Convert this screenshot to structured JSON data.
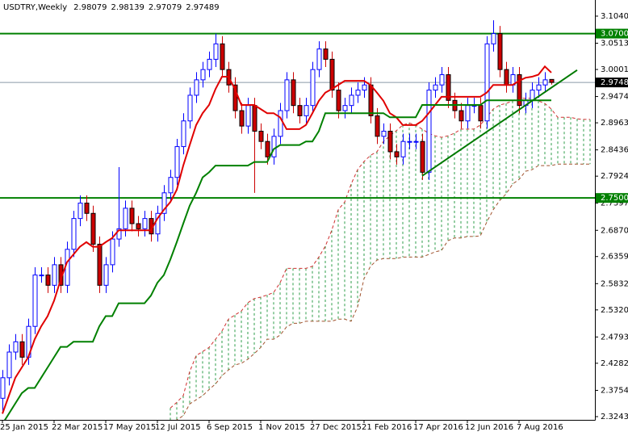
{
  "chart_data": {
    "type": "candlestick",
    "title": "USDTRY,Weekly",
    "ylim": [
      2.318,
      3.1354
    ],
    "yticks": [
      {
        "value": 3.104,
        "label": "3.10400"
      },
      {
        "value": 3.0513,
        "label": "3.05130"
      },
      3.00015,
      2.94745,
      {
        "value": 2.8963,
        "label": "2.89630"
      },
      {
        "value": 2.8436,
        "label": "2.84360"
      },
      2.79245,
      2.73975,
      {
        "value": 2.687,
        "label": "2.68700"
      },
      2.63595,
      {
        "value": 2.5832,
        "label": "2.58320"
      },
      2.53205,
      2.47935,
      {
        "value": 2.4282,
        "label": "2.42820"
      },
      2.37545,
      {
        "value": 2.3243,
        "label": "2.32430"
      }
    ],
    "categories": [
      "25 Jan 2015",
      null,
      null,
      null,
      null,
      null,
      null,
      null,
      "22 Mar 2015",
      null,
      null,
      null,
      null,
      null,
      null,
      null,
      "17 May 2015",
      null,
      null,
      null,
      null,
      null,
      null,
      null,
      "12 Jul 2015",
      null,
      null,
      null,
      null,
      null,
      null,
      null,
      "6 Sep 2015",
      null,
      null,
      null,
      null,
      null,
      null,
      null,
      "1 Nov 2015",
      null,
      null,
      null,
      null,
      null,
      null,
      null,
      "27 Dec 2015",
      null,
      null,
      null,
      null,
      null,
      null,
      null,
      "21 Feb 2016",
      null,
      null,
      null,
      null,
      null,
      null,
      null,
      "17 Apr 2016",
      null,
      null,
      null,
      null,
      null,
      null,
      null,
      "12 Jun 2016",
      null,
      null,
      null,
      null,
      null,
      null,
      null,
      "7 Aug 2016",
      null,
      null,
      null,
      null,
      null
    ],
    "candles": {
      "bull_color": "#0000ff",
      "bear_color": "#cc0000",
      "open": [
        2.36,
        2.4,
        2.45,
        2.47,
        2.44,
        2.5,
        2.6,
        2.6,
        2.58,
        2.62,
        2.58,
        2.65,
        2.71,
        2.74,
        2.72,
        2.66,
        2.58,
        2.62,
        2.67,
        2.69,
        2.73,
        2.7,
        2.69,
        2.71,
        2.68,
        2.72,
        2.76,
        2.79,
        2.85,
        2.9,
        2.95,
        2.98,
        3.0,
        3.02,
        3.05,
        3.0,
        2.97,
        2.92,
        2.89,
        2.93,
        2.88,
        2.86,
        2.83,
        2.87,
        2.92,
        2.98,
        2.93,
        2.91,
        2.93,
        3.0,
        3.04,
        3.02,
        2.96,
        2.92,
        2.93,
        2.95,
        2.96,
        2.97,
        2.91,
        2.87,
        2.88,
        2.84,
        2.83,
        2.86,
        2.86,
        2.86,
        2.8,
        2.96,
        2.97,
        2.99,
        2.94,
        2.92,
        2.9,
        2.93,
        2.93,
        2.9,
        3.05,
        3.07,
        3.0,
        2.97,
        2.99,
        2.93,
        2.94,
        2.96,
        2.97,
        2.98079
      ],
      "high": [
        2.415,
        2.465,
        2.485,
        2.485,
        2.515,
        2.615,
        2.615,
        2.615,
        2.635,
        2.635,
        2.665,
        2.725,
        2.755,
        2.755,
        2.735,
        2.675,
        2.635,
        2.685,
        2.81,
        2.745,
        2.745,
        2.715,
        2.725,
        2.725,
        2.735,
        2.775,
        2.805,
        2.865,
        2.915,
        2.965,
        2.995,
        3.015,
        3.035,
        3.07,
        3.065,
        3.015,
        2.985,
        2.935,
        2.945,
        2.945,
        2.895,
        2.875,
        2.885,
        2.935,
        2.995,
        2.995,
        2.945,
        2.945,
        3.015,
        3.055,
        3.055,
        3.035,
        2.975,
        2.945,
        2.965,
        2.975,
        2.985,
        2.985,
        2.925,
        2.895,
        2.895,
        2.855,
        2.875,
        2.875,
        2.875,
        2.875,
        2.975,
        2.985,
        3.005,
        3.005,
        2.955,
        2.935,
        2.945,
        2.945,
        2.945,
        3.065,
        3.096,
        3.085,
        3.015,
        3.005,
        3.005,
        2.955,
        2.975,
        2.985,
        2.995,
        2.98139
      ],
      "low": [
        2.33,
        2.385,
        2.435,
        2.425,
        2.425,
        2.485,
        2.585,
        2.565,
        2.565,
        2.565,
        2.565,
        2.635,
        2.695,
        2.705,
        2.645,
        2.565,
        2.565,
        2.605,
        2.655,
        2.675,
        2.685,
        2.675,
        2.675,
        2.665,
        2.665,
        2.705,
        2.745,
        2.775,
        2.835,
        2.885,
        2.935,
        2.965,
        2.985,
        3.005,
        2.985,
        2.955,
        2.905,
        2.875,
        2.875,
        2.76,
        2.845,
        2.815,
        2.815,
        2.855,
        2.905,
        2.915,
        2.895,
        2.895,
        2.915,
        2.985,
        3.005,
        2.945,
        2.905,
        2.905,
        2.915,
        2.935,
        2.945,
        2.895,
        2.855,
        2.855,
        2.825,
        2.815,
        2.815,
        2.845,
        2.845,
        2.785,
        2.785,
        2.945,
        2.955,
        2.925,
        2.905,
        2.885,
        2.885,
        2.915,
        2.885,
        2.885,
        3.035,
        2.985,
        2.955,
        2.955,
        2.915,
        2.915,
        2.925,
        2.945,
        2.955,
        2.97079
      ],
      "close": [
        2.4,
        2.45,
        2.47,
        2.44,
        2.5,
        2.6,
        2.6,
        2.58,
        2.62,
        2.58,
        2.65,
        2.71,
        2.74,
        2.72,
        2.66,
        2.58,
        2.62,
        2.67,
        2.69,
        2.73,
        2.7,
        2.69,
        2.71,
        2.68,
        2.72,
        2.76,
        2.79,
        2.85,
        2.9,
        2.95,
        2.98,
        3.0,
        3.02,
        3.05,
        3.0,
        2.97,
        2.92,
        2.89,
        2.93,
        2.88,
        2.86,
        2.83,
        2.87,
        2.92,
        2.98,
        2.93,
        2.91,
        2.93,
        3.0,
        3.04,
        3.02,
        2.96,
        2.92,
        2.93,
        2.95,
        2.96,
        2.97,
        2.91,
        2.87,
        2.88,
        2.84,
        2.83,
        2.86,
        2.86,
        2.86,
        2.8,
        2.96,
        2.97,
        2.99,
        2.94,
        2.92,
        2.9,
        2.93,
        2.93,
        2.9,
        3.05,
        3.07,
        3.0,
        2.97,
        2.99,
        2.93,
        2.94,
        2.96,
        2.97,
        2.98,
        2.97489
      ]
    },
    "lines": [
      {
        "color": "#e00000",
        "values": [
          2.33,
          2.365,
          2.4,
          2.42,
          2.44,
          2.475,
          2.5,
          2.52,
          2.55,
          2.59,
          2.625,
          2.64,
          2.655,
          2.664,
          2.655,
          2.655,
          2.664,
          2.672,
          2.687,
          2.687,
          2.687,
          2.687,
          2.687,
          2.687,
          2.71,
          2.727,
          2.742,
          2.766,
          2.813,
          2.853,
          2.892,
          2.915,
          2.931,
          2.962,
          2.986,
          2.986,
          2.962,
          2.931,
          2.931,
          2.931,
          2.923,
          2.915,
          2.915,
          2.907,
          2.884,
          2.884,
          2.884,
          2.892,
          2.915,
          2.939,
          2.955,
          2.962,
          2.97,
          2.978,
          2.978,
          2.978,
          2.978,
          2.97,
          2.955,
          2.939,
          2.915,
          2.907,
          2.892,
          2.892,
          2.892,
          2.9,
          2.915,
          2.931,
          2.947,
          2.947,
          2.947,
          2.947,
          2.947,
          2.947,
          2.947,
          2.955,
          2.97,
          2.97,
          2.97,
          2.97,
          2.978,
          2.984,
          2.986,
          2.99,
          3.006,
          2.994
        ]
      },
      {
        "color": "#008000",
        "values": [
          2.31,
          2.33,
          2.35,
          2.37,
          2.38,
          2.38,
          2.4,
          2.42,
          2.44,
          2.46,
          2.46,
          2.47,
          2.47,
          2.47,
          2.47,
          2.5,
          2.52,
          2.52,
          2.545,
          2.545,
          2.545,
          2.545,
          2.545,
          2.56,
          2.585,
          2.6,
          2.63,
          2.664,
          2.7,
          2.735,
          2.76,
          2.79,
          2.8,
          2.813,
          2.813,
          2.813,
          2.813,
          2.813,
          2.813,
          2.82,
          2.82,
          2.82,
          2.845,
          2.853,
          2.853,
          2.853,
          2.853,
          2.86,
          2.86,
          2.88,
          2.915,
          2.915,
          2.915,
          2.915,
          2.915,
          2.915,
          2.915,
          2.915,
          2.915,
          2.915,
          2.907,
          2.907,
          2.907,
          2.907,
          2.907,
          2.931,
          2.931,
          2.931,
          2.931,
          2.931,
          2.931,
          2.931,
          2.931,
          2.931,
          2.931,
          2.94,
          2.94,
          2.94,
          2.94,
          2.94,
          2.94,
          2.94,
          2.94,
          2.94,
          2.94,
          2.94
        ]
      }
    ],
    "cloud": {
      "color": "#2e9e4a",
      "span_a_color": "#d03030",
      "span_b_color": "#a0522d",
      "span_a": [
        null,
        null,
        null,
        null,
        null,
        null,
        null,
        null,
        null,
        null,
        null,
        null,
        null,
        null,
        null,
        null,
        null,
        null,
        null,
        null,
        null,
        null,
        null,
        null,
        null,
        null,
        2.341,
        2.352,
        2.365,
        2.412,
        2.443,
        2.451,
        2.459,
        2.475,
        2.491,
        2.514,
        2.522,
        2.53,
        2.546,
        2.554,
        2.557,
        2.561,
        2.566,
        2.585,
        2.613,
        2.613,
        2.613,
        2.613,
        2.617,
        2.635,
        2.656,
        2.687,
        2.727,
        2.742,
        2.777,
        2.805,
        2.821,
        2.833,
        2.84,
        2.86,
        2.871,
        2.881,
        2.892,
        2.896,
        2.892,
        2.884,
        2.876,
        2.871,
        2.868,
        2.871,
        2.876,
        2.884,
        2.884,
        2.884,
        2.892,
        2.907,
        2.923,
        2.931,
        2.934,
        2.939,
        2.944,
        2.944,
        2.944,
        2.939,
        2.934,
        2.923,
        2.907,
        2.907,
        2.907,
        2.904,
        2.903,
        2.903
      ],
      "span_b": [
        null,
        null,
        null,
        null,
        null,
        null,
        null,
        null,
        null,
        null,
        null,
        null,
        null,
        null,
        null,
        null,
        null,
        null,
        null,
        null,
        null,
        null,
        null,
        null,
        null,
        null,
        2.31,
        2.318,
        2.326,
        2.349,
        2.357,
        2.365,
        2.377,
        2.388,
        2.404,
        2.415,
        2.425,
        2.428,
        2.436,
        2.447,
        2.459,
        2.475,
        2.475,
        2.483,
        2.499,
        2.506,
        2.506,
        2.51,
        2.51,
        2.51,
        2.51,
        2.51,
        2.514,
        2.514,
        2.51,
        2.538,
        2.593,
        2.617,
        2.629,
        2.632,
        2.632,
        2.632,
        2.635,
        2.635,
        2.635,
        2.635,
        2.64,
        2.645,
        2.648,
        2.667,
        2.672,
        2.672,
        2.675,
        2.675,
        2.676,
        2.703,
        2.727,
        2.745,
        2.758,
        2.777,
        2.786,
        2.802,
        2.805,
        2.813,
        2.813,
        2.813,
        2.816,
        2.816,
        2.816,
        2.816,
        2.816,
        2.816
      ]
    },
    "trendline": {
      "color": "#007a00",
      "x": [
        65,
        89
      ],
      "values": [
        2.793,
        2.999
      ]
    },
    "levels": {
      "color": "#008000",
      "items": [
        {
          "value": 3.07,
          "label": "3.07000"
        },
        {
          "value": 2.75,
          "label": "2.75000"
        }
      ]
    },
    "price_line_color": "#8a9aa8"
  }
}
